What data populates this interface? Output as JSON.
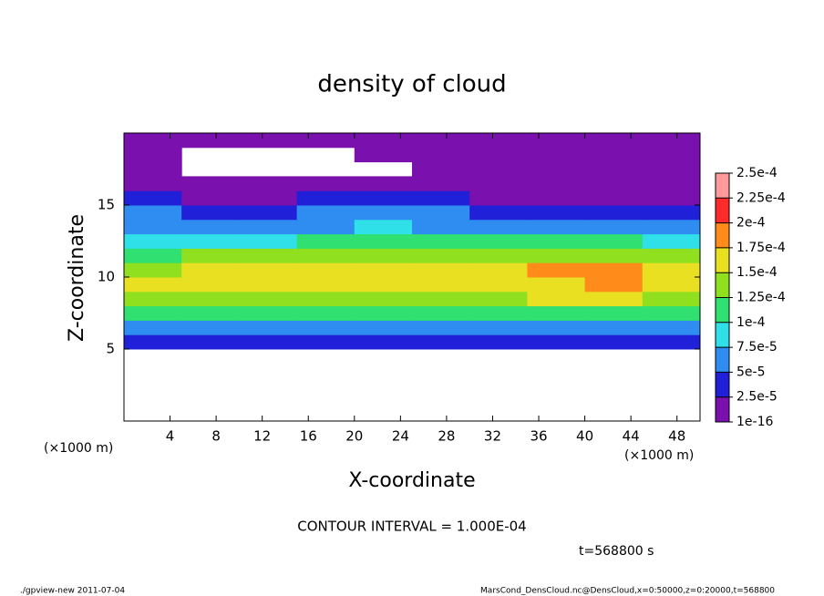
{
  "chart_data": {
    "type": "heatmap",
    "title": "density of cloud",
    "x_label": "X-coordinate",
    "y_label": "Z-coordinate",
    "x_unit": "(×1000 m)",
    "annotation": "CONTOUR INTERVAL = 1.000E-04",
    "time_label": "t=568800 s",
    "footer_left": "./gpview-new  2011-07-04",
    "footer_right": "MarsCond_DensCloud.nc@DensCloud,x=0:50000,z=0:20000,t=568800",
    "x": [
      2.5,
      7.5,
      12.5,
      17.5,
      22.5,
      27.5,
      32.5,
      37.5,
      42.5,
      47.5
    ],
    "y": [
      0.5,
      1.5,
      2.5,
      3.5,
      4.5,
      5.5,
      6.5,
      7.5,
      8.5,
      9.5,
      10.5,
      11.5,
      12.5,
      13.5,
      14.5,
      15.5,
      16.5,
      17.5,
      18.5,
      19.5
    ],
    "values": [
      [
        null,
        null,
        null,
        null,
        null,
        null,
        null,
        null,
        null,
        null
      ],
      [
        null,
        null,
        null,
        null,
        null,
        null,
        null,
        null,
        null,
        null
      ],
      [
        null,
        null,
        null,
        null,
        null,
        null,
        null,
        null,
        null,
        null
      ],
      [
        null,
        null,
        null,
        null,
        null,
        null,
        null,
        null,
        null,
        null
      ],
      [
        null,
        null,
        null,
        null,
        null,
        null,
        null,
        null,
        null,
        null
      ],
      [
        3e-05,
        3e-05,
        2.5e-05,
        3e-05,
        3e-05,
        3e-05,
        3e-05,
        3e-05,
        2.5e-05,
        3e-05
      ],
      [
        6e-05,
        6.5e-05,
        6e-05,
        6e-05,
        6.5e-05,
        6e-05,
        6e-05,
        6.5e-05,
        6e-05,
        6e-05
      ],
      [
        0.000105,
        0.00011,
        0.0001,
        0.000105,
        0.00011,
        0.000105,
        0.000105,
        0.00011,
        0.000105,
        0.000105
      ],
      [
        0.000135,
        0.00014,
        0.00014,
        0.000135,
        0.000145,
        0.00014,
        0.000145,
        0.00015,
        0.00015,
        0.00014
      ],
      [
        0.00015,
        0.00016,
        0.000155,
        0.00016,
        0.000165,
        0.00016,
        0.000165,
        0.00017,
        0.000175,
        0.000165
      ],
      [
        0.000145,
        0.000155,
        0.00015,
        0.00016,
        0.000165,
        0.000155,
        0.00017,
        0.000175,
        0.00018,
        0.00016
      ],
      [
        0.000115,
        0.00013,
        0.00013,
        0.000135,
        0.00014,
        0.000135,
        0.00014,
        0.000145,
        0.000145,
        0.000135
      ],
      [
        9e-05,
        9e-05,
        8.5e-05,
        0.0001,
        0.000105,
        0.0001,
        0.000105,
        0.000105,
        0.0001,
        9.5e-05
      ],
      [
        7e-05,
        6e-05,
        5.5e-05,
        7e-05,
        7.5e-05,
        7e-05,
        6.5e-05,
        6.5e-05,
        6e-05,
        6e-05
      ],
      [
        5e-05,
        3e-05,
        3e-05,
        5e-05,
        5.5e-05,
        5e-05,
        3.5e-05,
        3e-05,
        3e-05,
        3.5e-05
      ],
      [
        3e-05,
        2e-05,
        2e-05,
        3e-05,
        3.5e-05,
        3e-05,
        2e-05,
        1.5e-05,
        1.5e-05,
        2e-05
      ],
      [
        2e-05,
        1.5e-05,
        1.5e-05,
        2e-05,
        2e-05,
        1.5e-05,
        1e-05,
        1e-05,
        1e-05,
        1e-05
      ],
      [
        1e-05,
        null,
        null,
        null,
        null,
        1e-05,
        5e-06,
        5e-06,
        5e-06,
        5e-06
      ],
      [
        5e-06,
        null,
        null,
        null,
        5e-06,
        5e-06,
        5e-06,
        5e-06,
        5e-06,
        5e-06
      ],
      [
        5e-06,
        5e-06,
        5e-06,
        5e-06,
        5e-06,
        5e-06,
        5e-06,
        5e-06,
        5e-06,
        5e-06
      ]
    ],
    "xlim": [
      0,
      50
    ],
    "xticks": [
      4,
      8,
      12,
      16,
      20,
      24,
      28,
      32,
      36,
      40,
      44,
      48
    ],
    "ylim": [
      0,
      20
    ],
    "yticks": [
      5,
      10,
      15
    ],
    "colorbar_ticks": [
      {
        "value": 1e-16,
        "label": "1e-16"
      },
      {
        "value": 2.5e-05,
        "label": "2.5e-5"
      },
      {
        "value": 5e-05,
        "label": "5e-5"
      },
      {
        "value": 7.5e-05,
        "label": "7.5e-5"
      },
      {
        "value": 0.0001,
        "label": "1e-4"
      },
      {
        "value": 0.000125,
        "label": "1.25e-4"
      },
      {
        "value": 0.00015,
        "label": "1.5e-4"
      },
      {
        "value": 0.000175,
        "label": "1.75e-4"
      },
      {
        "value": 0.0002,
        "label": "2e-4"
      },
      {
        "value": 0.000225,
        "label": "2.25e-4"
      },
      {
        "value": 0.00025,
        "label": "2.5e-4"
      }
    ],
    "colors": [
      "#7a10ae",
      "#2020d8",
      "#2f8cf0",
      "#2fe0e8",
      "#30e070",
      "#90e020",
      "#e8e020",
      "#ff8c1a",
      "#ff2a2a",
      "#ff9a9a"
    ]
  }
}
